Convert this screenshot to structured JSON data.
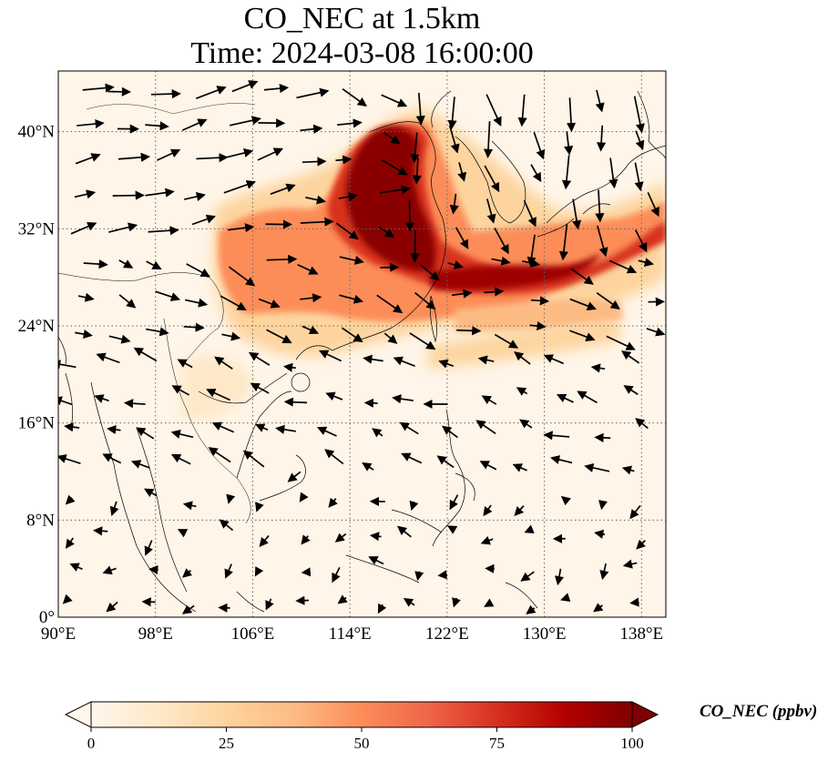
{
  "title": {
    "line1": "CO_NEC at 1.5km",
    "line2": "Time: 2024-03-08 16:00:00"
  },
  "map": {
    "lon_range": [
      90,
      140
    ],
    "lat_range": [
      0,
      45
    ],
    "gridlines": true,
    "lon_ticks": [
      {
        "value": 90,
        "label": "90°E"
      },
      {
        "value": 98,
        "label": "98°E"
      },
      {
        "value": 106,
        "label": "106°E"
      },
      {
        "value": 114,
        "label": "114°E"
      },
      {
        "value": 122,
        "label": "122°E"
      },
      {
        "value": 130,
        "label": "130°E"
      },
      {
        "value": 138,
        "label": "138°E"
      }
    ],
    "lat_ticks": [
      {
        "value": 0,
        "label": "0°"
      },
      {
        "value": 8,
        "label": "8°N"
      },
      {
        "value": 16,
        "label": "16°N"
      },
      {
        "value": 24,
        "label": "24°N"
      },
      {
        "value": 32,
        "label": "32°N"
      },
      {
        "value": 40,
        "label": "40°N"
      }
    ],
    "colormap": "OrRd",
    "field_colors": [
      "#fff7ec",
      "#fee8c8",
      "#fdd49e",
      "#fdbb84",
      "#fc8d59",
      "#ef6548",
      "#d7301f",
      "#b30000",
      "#7f0000"
    ]
  },
  "colorbar": {
    "label": "CO_NEC (ppbv)",
    "range": [
      0,
      100
    ],
    "extend": "both",
    "ticks": [
      {
        "value": 0,
        "label": "0"
      },
      {
        "value": 25,
        "label": "25"
      },
      {
        "value": 50,
        "label": "50"
      },
      {
        "value": 75,
        "label": "75"
      },
      {
        "value": 100,
        "label": "100"
      }
    ]
  }
}
